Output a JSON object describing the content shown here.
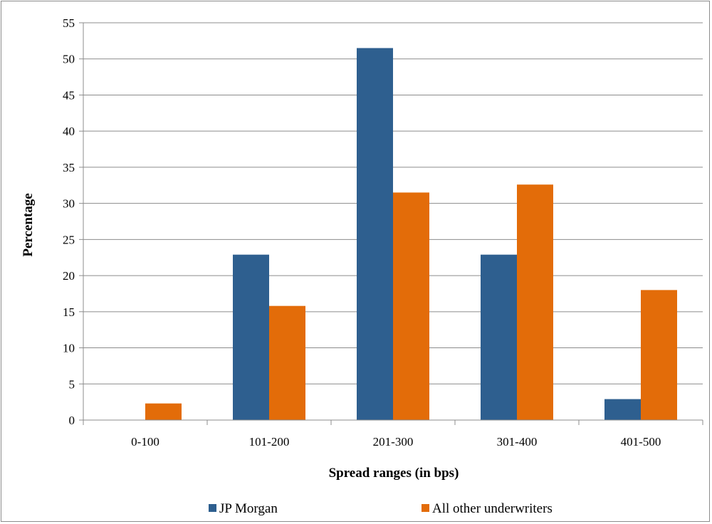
{
  "chart_data": {
    "type": "bar",
    "title": "",
    "xlabel": "Spread ranges (in bps)",
    "ylabel": "Percentage",
    "categories": [
      "0-100",
      "101-200",
      "201-300",
      "301-400",
      "401-500"
    ],
    "series": [
      {
        "name": "JP Morgan",
        "color": "#2e5f8f",
        "values": [
          0,
          22.9,
          51.5,
          22.9,
          2.9
        ]
      },
      {
        "name": "All other underwriters",
        "color": "#e36c09",
        "values": [
          2.3,
          15.8,
          31.5,
          32.6,
          18.0
        ]
      }
    ],
    "ylim": [
      0,
      55
    ],
    "yticks": [
      0,
      5,
      10,
      15,
      20,
      25,
      30,
      35,
      40,
      45,
      50,
      55
    ],
    "grid": true,
    "legend_position": "bottom"
  }
}
